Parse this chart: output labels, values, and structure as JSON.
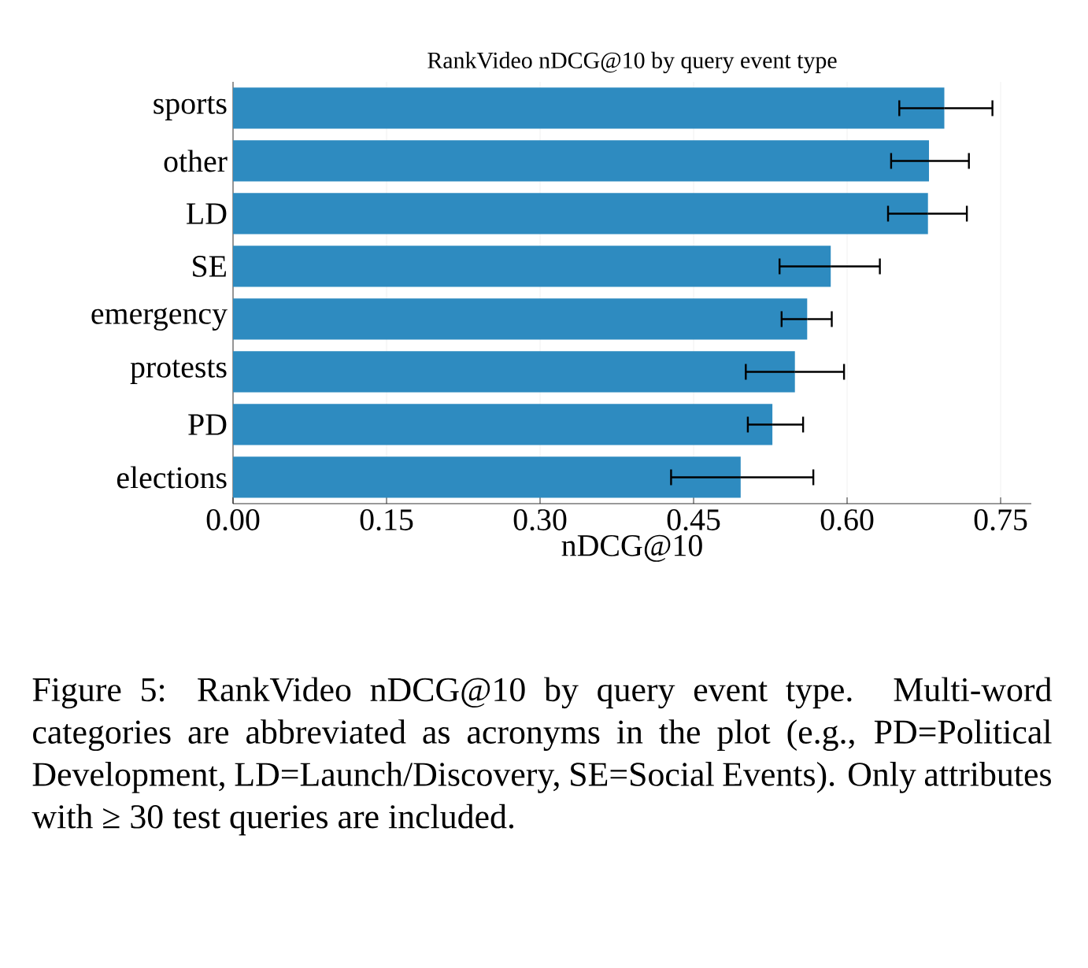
{
  "chart_data": {
    "type": "bar",
    "orientation": "horizontal",
    "title": "RankVideo nDCG@10 by query event type",
    "xlabel": "nDCG@10",
    "categories": [
      "sports",
      "other",
      "LD",
      "SE",
      "emergency",
      "protests",
      "PD",
      "elections"
    ],
    "values": [
      0.695,
      0.68,
      0.679,
      0.584,
      0.561,
      0.549,
      0.527,
      0.496
    ],
    "errors": [
      [
        0.651,
        0.742
      ],
      [
        0.643,
        0.719
      ],
      [
        0.64,
        0.717
      ],
      [
        0.534,
        0.632
      ],
      [
        0.536,
        0.585
      ],
      [
        0.501,
        0.597
      ],
      [
        0.503,
        0.557
      ],
      [
        0.428,
        0.567
      ]
    ],
    "color": "#2e8bc0",
    "xlim": [
      0,
      0.78
    ],
    "xticks": [
      {
        "value": 0,
        "label": "0.00"
      },
      {
        "value": 0.15,
        "label": "0.15"
      },
      {
        "value": 0.3,
        "label": "0.30"
      },
      {
        "value": 0.45,
        "label": "0.45"
      },
      {
        "value": 0.6,
        "label": "0.60"
      },
      {
        "value": 0.75,
        "label": "0.75"
      }
    ],
    "grid": "x",
    "annotations": [
      "Figure 5: RankVideo nDCG@10 by query event type. Multi-word categories are abbreviated as acronyms in the plot (e.g., PD=Political Development, LD=Launch/Discovery, SE=Social Events). Only attributes with ≥ 30 test queries are included."
    ]
  }
}
